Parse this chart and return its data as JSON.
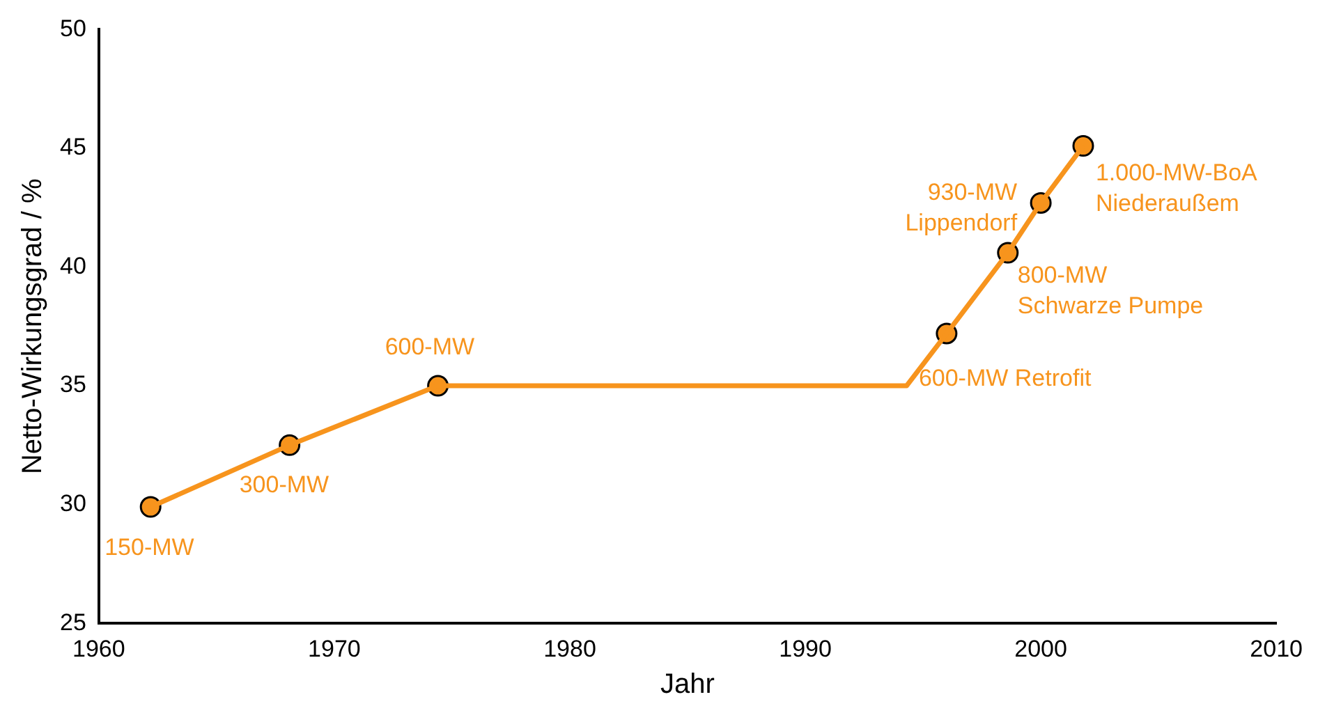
{
  "chart_data": {
    "type": "line",
    "xlabel": "Jahr",
    "ylabel": "Netto-Wirkungsgrad / %",
    "xlim": [
      1960,
      2010
    ],
    "xticks": [
      1960,
      1970,
      1980,
      1990,
      2000,
      2010
    ],
    "ylim": [
      25,
      50
    ],
    "yticks": [
      25,
      30,
      35,
      40,
      45,
      50
    ],
    "grid": false,
    "legend": false,
    "series": [
      {
        "type": "line",
        "color": "#f7941d",
        "marker": "none",
        "x": [
          1962.2,
          1968.1,
          1974.4,
          1994.3,
          1996.0,
          1998.6,
          2000.0,
          2001.8
        ],
        "values": [
          29.9,
          32.5,
          35,
          35,
          37.2,
          40.6,
          42.7,
          45.1
        ]
      },
      {
        "type": "scatter",
        "color": "#f7941d",
        "marker": "circle",
        "x": [
          1962.2,
          1968.1,
          1974.4,
          1996.0,
          1998.6,
          2000.0,
          2001.8
        ],
        "values": [
          29.9,
          32.5,
          35,
          37.2,
          40.6,
          42.7,
          45.1
        ]
      }
    ],
    "annotations": [
      {
        "text": "150-MW",
        "x": 1962.2,
        "y": 29.9
      },
      {
        "text": "300-MW",
        "x": 1968.1,
        "y": 32.5
      },
      {
        "text": "600-MW",
        "x": 1974.4,
        "y": 35
      },
      {
        "text": "600-MW Retrofit",
        "x": 1996.0,
        "y": 37.2
      },
      {
        "text": "800-MW\nSchwarze Pumpe",
        "x": 1998.6,
        "y": 40.6
      },
      {
        "text": "930-MW\nLippendorf",
        "x": 2000.0,
        "y": 42.7
      },
      {
        "text": "1.000-MW-BoA\nNiederaußem",
        "x": 2001.8,
        "y": 45.1
      }
    ]
  }
}
